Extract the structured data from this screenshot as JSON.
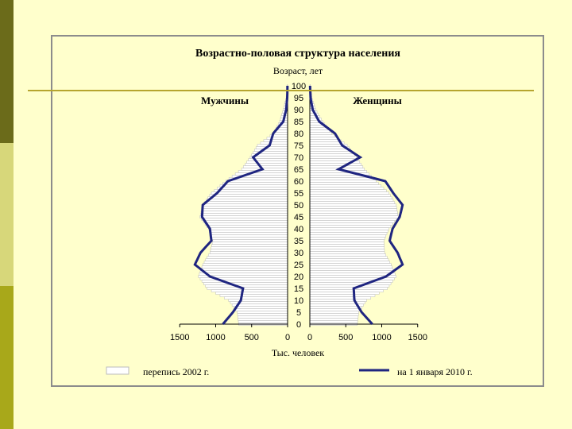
{
  "chart_data": {
    "type": "bar",
    "title": "Возрастно-половая структура населения",
    "ylabel": "Возраст, лет",
    "xlabel": "Тыс. человек",
    "left_label": "Мужчины",
    "right_label": "Женщины",
    "y_ticks": [
      "0",
      "5",
      "10",
      "15",
      "20",
      "25",
      "30",
      "35",
      "40",
      "45",
      "50",
      "55",
      "60",
      "65",
      "70",
      "75",
      "80",
      "85",
      "90",
      "95",
      "100"
    ],
    "x_ticks_left": [
      "1500",
      "1000",
      "500",
      "0"
    ],
    "x_ticks_right": [
      "0",
      "500",
      "1000",
      "1500"
    ],
    "xlim": [
      0,
      1500
    ],
    "ylim": [
      0,
      100
    ],
    "legend": {
      "bars": "перепись 2002 г.",
      "line": "на 1 января 2010 г."
    },
    "colors": {
      "line": "#1f2580",
      "bar_fill": "#ffffff",
      "bar_stroke": "#bbbbbb"
    },
    "ages": [
      0,
      5,
      10,
      15,
      20,
      25,
      30,
      35,
      40,
      45,
      50,
      55,
      60,
      65,
      70,
      75,
      80,
      85,
      90,
      95,
      100
    ],
    "series": [
      {
        "name": "перепись 2002 г.",
        "men": [
          680,
          700,
          820,
          1120,
          1240,
          1180,
          1080,
          1040,
          1100,
          1220,
          1180,
          1060,
          860,
          640,
          520,
          420,
          200,
          110,
          60,
          20,
          5
        ],
        "women": [
          660,
          680,
          790,
          1080,
          1200,
          1130,
          1040,
          1030,
          1100,
          1230,
          1200,
          1100,
          920,
          760,
          650,
          520,
          300,
          180,
          80,
          30,
          8
        ]
      },
      {
        "name": "на 1 января 2010 г.",
        "men": [
          900,
          760,
          650,
          620,
          1080,
          1290,
          1210,
          1060,
          1080,
          1190,
          1180,
          980,
          830,
          350,
          480,
          250,
          200,
          60,
          20,
          5,
          2
        ],
        "women": [
          870,
          720,
          620,
          610,
          1060,
          1290,
          1220,
          1110,
          1150,
          1250,
          1290,
          1160,
          1050,
          400,
          700,
          450,
          350,
          130,
          40,
          10,
          3
        ]
      }
    ]
  }
}
